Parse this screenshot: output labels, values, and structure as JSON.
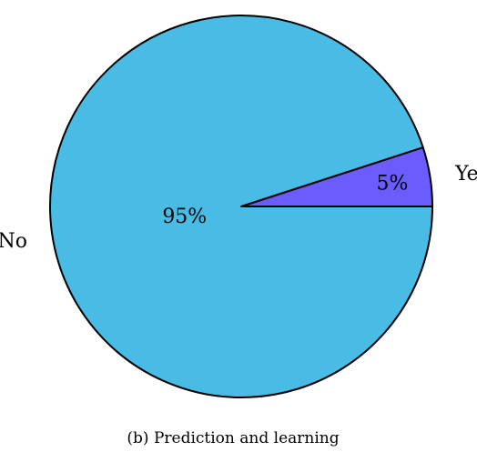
{
  "chart_data": {
    "type": "pie",
    "slices": [
      {
        "label": "Yes",
        "value": 5,
        "pct_label": "5%",
        "color": "#6a5cff"
      },
      {
        "label": "No",
        "value": 95,
        "pct_label": "95%",
        "color": "#48bce5"
      }
    ],
    "start_angle_deg": 0,
    "direction": "counterclockwise",
    "caption": "(b) Prediction and learning"
  }
}
